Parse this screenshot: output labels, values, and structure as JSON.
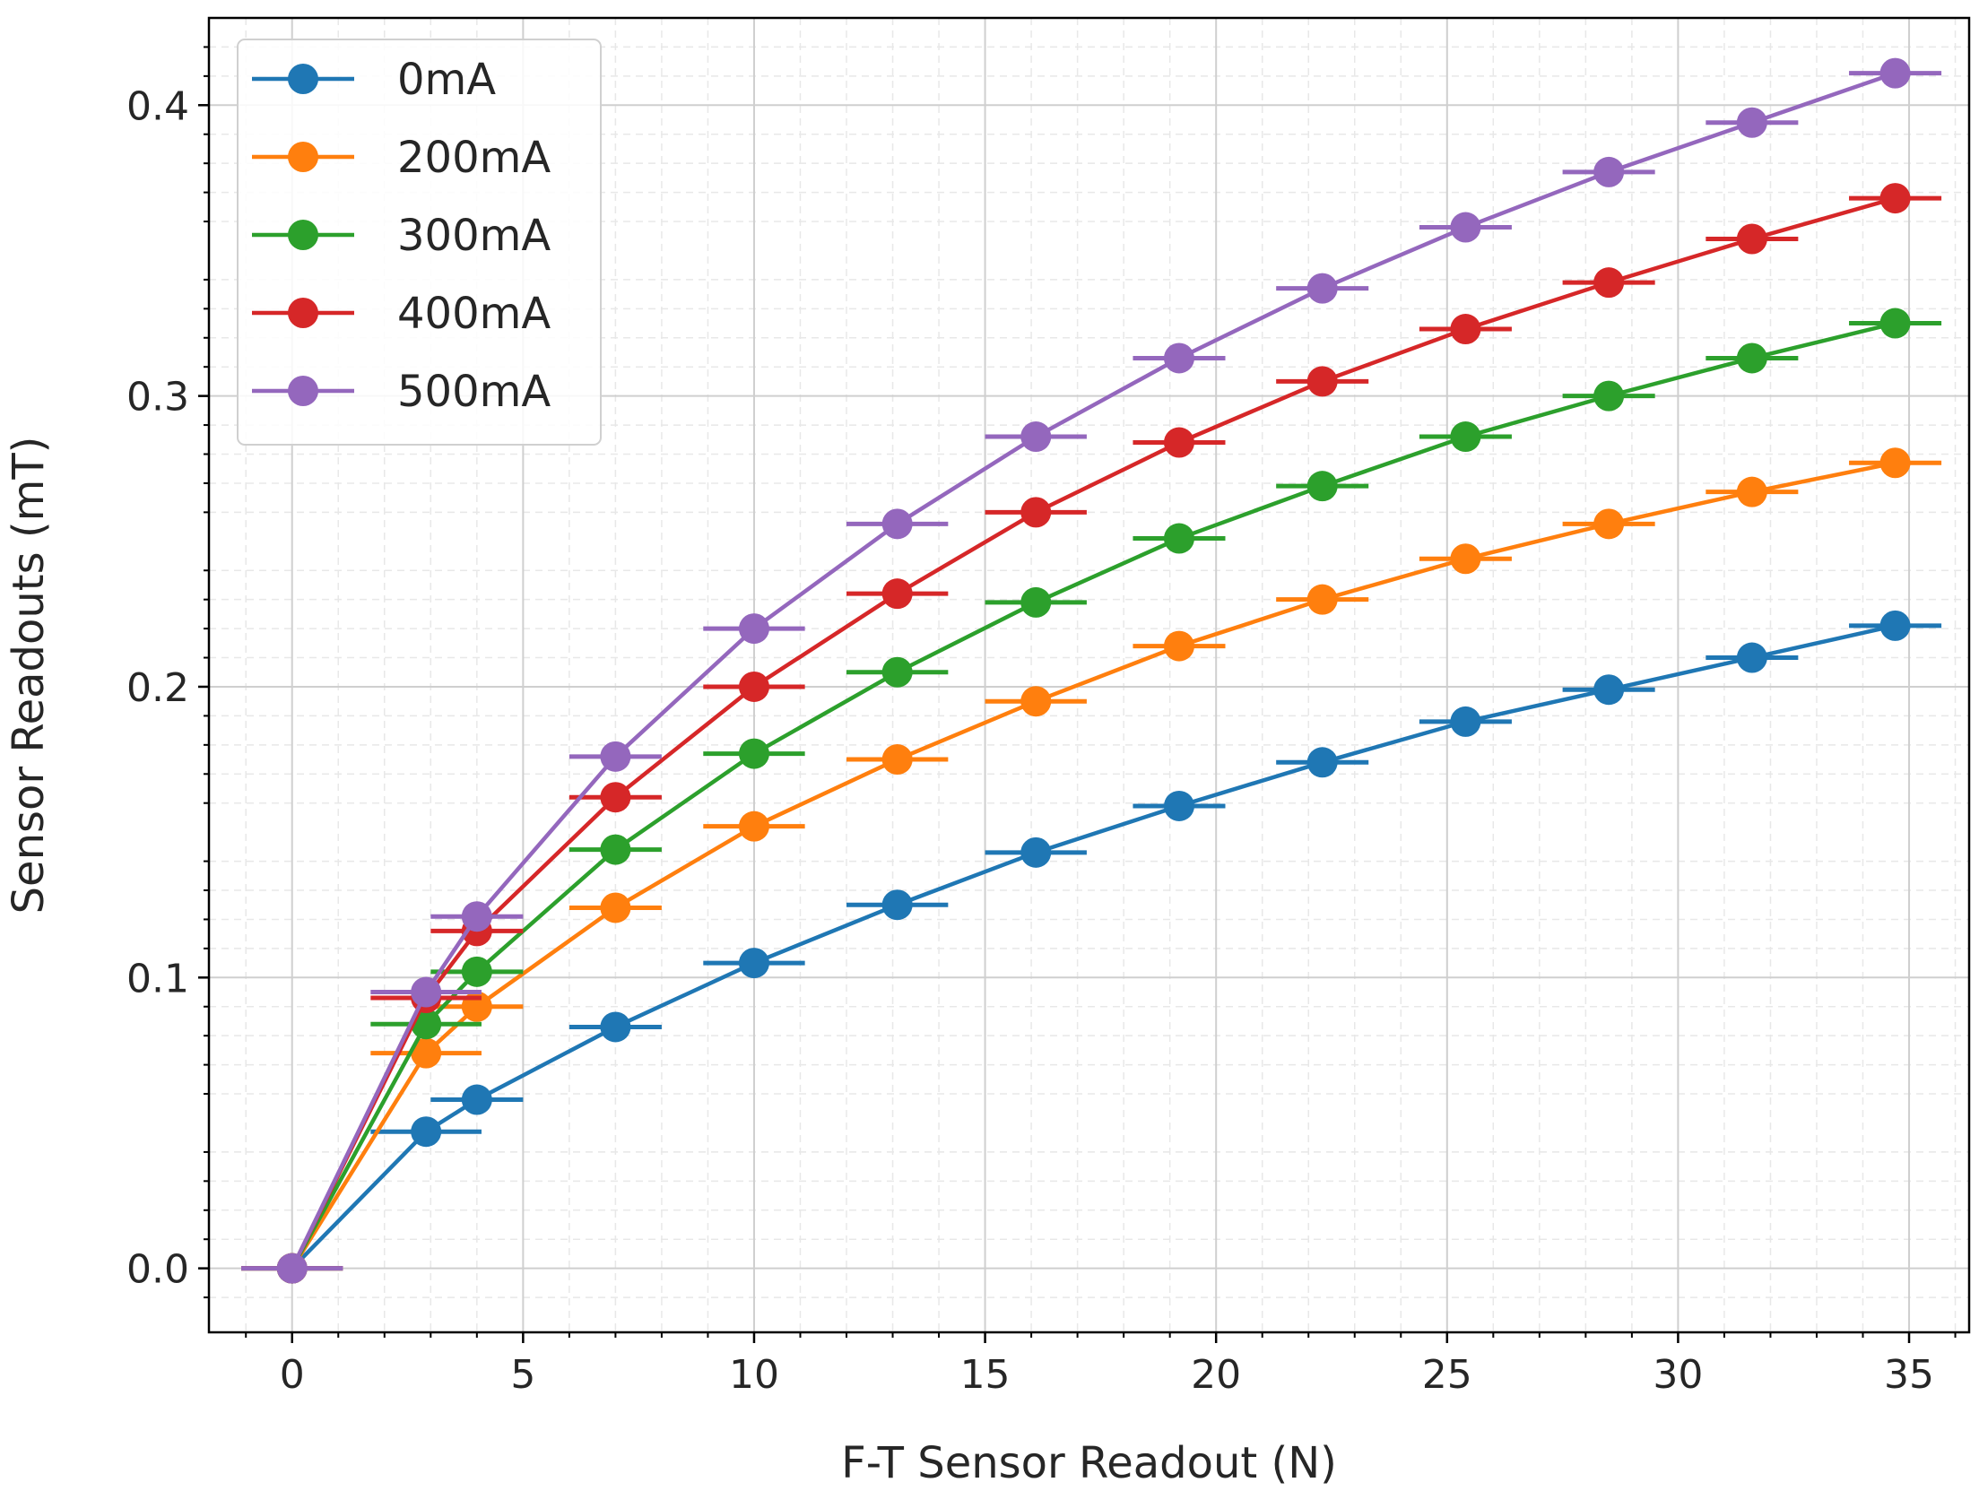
{
  "chart_data": {
    "type": "line",
    "title": "",
    "xlabel": "F-T Sensor Readout (N)",
    "ylabel": "Sensor Readouts (mT)",
    "xlim": [
      -1.8,
      36.3
    ],
    "ylim": [
      -0.022,
      0.43
    ],
    "xticks": [
      0,
      5,
      10,
      15,
      20,
      25,
      30,
      35
    ],
    "xtick_labels": [
      "0",
      "5",
      "10",
      "15",
      "20",
      "25",
      "30",
      "35"
    ],
    "yticks": [
      0.0,
      0.1,
      0.2,
      0.3,
      0.4
    ],
    "ytick_labels": [
      "0.0",
      "0.1",
      "0.2",
      "0.3",
      "0.4"
    ],
    "grid": true,
    "legend_position": "top-left",
    "error_bars": "horizontal",
    "series": [
      {
        "name": "0mA",
        "color": "#1f77b4",
        "x": [
          0,
          2.9,
          4.0,
          7.0,
          10.0,
          13.1,
          16.1,
          19.2,
          22.3,
          25.4,
          28.5,
          31.6,
          34.7
        ],
        "y": [
          0,
          0.047,
          0.058,
          0.083,
          0.105,
          0.125,
          0.143,
          0.159,
          0.174,
          0.188,
          0.199,
          0.21,
          0.221
        ],
        "xerr": [
          1.1,
          1.2,
          1.0,
          1.0,
          1.1,
          1.1,
          1.1,
          1.0,
          1.0,
          1.0,
          1.0,
          1.0,
          1.0
        ]
      },
      {
        "name": "200mA",
        "color": "#ff7f0e",
        "x": [
          0,
          2.9,
          4.0,
          7.0,
          10.0,
          13.1,
          16.1,
          19.2,
          22.3,
          25.4,
          28.5,
          31.6,
          34.7
        ],
        "y": [
          0,
          0.074,
          0.09,
          0.124,
          0.152,
          0.175,
          0.195,
          0.214,
          0.23,
          0.244,
          0.256,
          0.267,
          0.277
        ],
        "xerr": [
          1.1,
          1.2,
          1.0,
          1.0,
          1.1,
          1.1,
          1.1,
          1.0,
          1.0,
          1.0,
          1.0,
          1.0,
          1.0
        ]
      },
      {
        "name": "300mA",
        "color": "#2ca02c",
        "x": [
          0,
          2.9,
          4.0,
          7.0,
          10.0,
          13.1,
          16.1,
          19.2,
          22.3,
          25.4,
          28.5,
          31.6,
          34.7
        ],
        "y": [
          0,
          0.084,
          0.102,
          0.144,
          0.177,
          0.205,
          0.229,
          0.251,
          0.269,
          0.286,
          0.3,
          0.313,
          0.325
        ],
        "xerr": [
          1.1,
          1.2,
          1.0,
          1.0,
          1.1,
          1.1,
          1.1,
          1.0,
          1.0,
          1.0,
          1.0,
          1.0,
          1.0
        ]
      },
      {
        "name": "400mA",
        "color": "#d62728",
        "x": [
          0,
          2.9,
          4.0,
          7.0,
          10.0,
          13.1,
          16.1,
          19.2,
          22.3,
          25.4,
          28.5,
          31.6,
          34.7
        ],
        "y": [
          0,
          0.093,
          0.116,
          0.162,
          0.2,
          0.232,
          0.26,
          0.284,
          0.305,
          0.323,
          0.339,
          0.354,
          0.368
        ],
        "xerr": [
          1.1,
          1.2,
          1.0,
          1.0,
          1.1,
          1.1,
          1.1,
          1.0,
          1.0,
          1.0,
          1.0,
          1.0,
          1.0
        ]
      },
      {
        "name": "500mA",
        "color": "#9467bd",
        "x": [
          0,
          2.9,
          4.0,
          7.0,
          10.0,
          13.1,
          16.1,
          19.2,
          22.3,
          25.4,
          28.5,
          31.6,
          34.7
        ],
        "y": [
          0,
          0.095,
          0.121,
          0.176,
          0.22,
          0.256,
          0.286,
          0.313,
          0.337,
          0.358,
          0.377,
          0.394,
          0.411
        ],
        "xerr": [
          1.1,
          1.2,
          1.0,
          1.0,
          1.1,
          1.1,
          1.1,
          1.0,
          1.0,
          1.0,
          1.0,
          1.0,
          1.0
        ]
      }
    ]
  }
}
